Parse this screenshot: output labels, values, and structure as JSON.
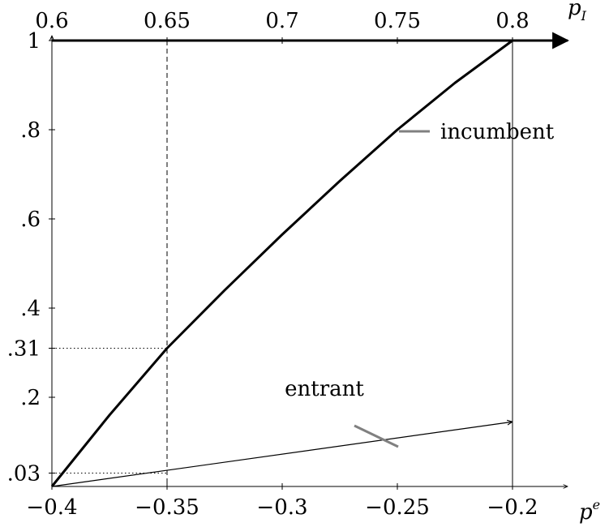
{
  "chart_data": {
    "type": "line",
    "x_bottom": {
      "label": "p",
      "label_superscript": "e",
      "range": [
        -0.4,
        -0.2
      ],
      "ticks": [
        -0.4,
        -0.35,
        -0.3,
        -0.25,
        -0.2
      ],
      "tick_labels": [
        "−0.4",
        "−0.35",
        "−0.3",
        "−0.25",
        "−0.2"
      ]
    },
    "x_top": {
      "label": "p",
      "label_subscript": "I",
      "range": [
        0.6,
        0.8
      ],
      "ticks": [
        0.6,
        0.65,
        0.7,
        0.75,
        0.8
      ],
      "tick_labels": [
        "0.6",
        "0.65",
        "0.7",
        "0.75",
        "0.8"
      ]
    },
    "y": {
      "range": [
        0,
        1
      ],
      "ticks": [
        0.03,
        0.2,
        0.31,
        0.4,
        0.6,
        0.8,
        1
      ],
      "tick_labels": [
        ".03",
        ".2",
        ".31",
        ".4",
        ".6",
        ".8",
        "1"
      ]
    },
    "reference_lines": {
      "dashed_vertical_x": -0.35,
      "solid_vertical_x": -0.2,
      "dotted_horizontal_y": [
        0.31,
        0.03
      ]
    },
    "series": [
      {
        "name": "incumbent",
        "x": [
          -0.4,
          -0.375,
          -0.35,
          -0.325,
          -0.3,
          -0.275,
          -0.25,
          -0.225,
          -0.2
        ],
        "y": [
          0.0,
          0.16,
          0.31,
          0.44,
          0.565,
          0.685,
          0.8,
          0.905,
          1.0
        ]
      },
      {
        "name": "entrant",
        "x": [
          -0.4,
          -0.2
        ],
        "y": [
          0.0,
          0.145
        ]
      }
    ],
    "annotations": [
      {
        "text": "incumbent",
        "x": -0.2375,
        "y": 0.8
      },
      {
        "text": "entrant",
        "x": -0.268,
        "y": 0.215
      }
    ],
    "grid": false,
    "legend": "none"
  }
}
